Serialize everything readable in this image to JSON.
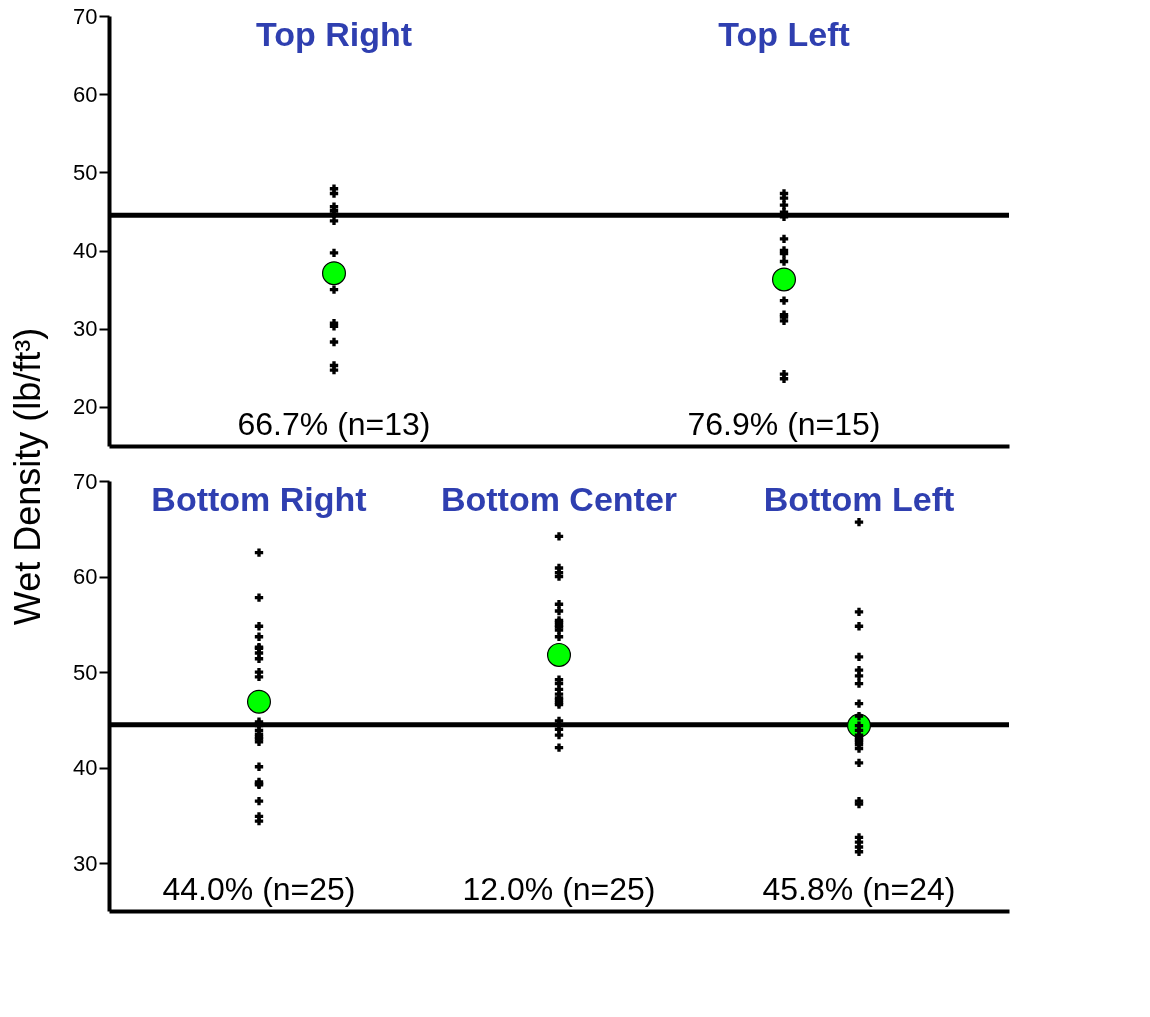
{
  "chart_data": [
    {
      "type": "scatter",
      "ylabel": "Wet Density (lb/ft³)",
      "categories": [
        "Top Right",
        "Top Left"
      ],
      "ylim": [
        15,
        70
      ],
      "yticks": [
        20,
        30,
        40,
        50,
        60,
        70
      ],
      "grid": false,
      "series": [
        {
          "marker": "cross",
          "color": "#000000",
          "x": [
            "Top Right",
            "Top Right",
            "Top Right",
            "Top Right",
            "Top Right",
            "Top Right",
            "Top Right",
            "Top Right",
            "Top Right",
            "Top Right",
            "Top Right",
            "Top Right",
            "Top Right",
            "Top Left",
            "Top Left",
            "Top Left",
            "Top Left",
            "Top Left",
            "Top Left",
            "Top Left",
            "Top Left",
            "Top Left",
            "Top Left",
            "Top Left",
            "Top Left",
            "Top Left",
            "Top Left",
            "Top Left"
          ],
          "values": [
            47.9,
            47.3,
            45.6,
            45.1,
            44.7,
            43.8,
            39.7,
            35.0,
            30.7,
            30.3,
            28.3,
            25.3,
            24.7,
            47.3,
            46.7,
            45.8,
            44.9,
            44.3,
            41.5,
            40.0,
            39.6,
            38.6,
            33.6,
            31.8,
            31.5,
            31.0,
            24.2,
            23.6
          ]
        },
        {
          "marker": "circle",
          "color": "#00ff00",
          "x": [
            "Top Right",
            "Top Left"
          ],
          "values": [
            37.1,
            36.3
          ]
        }
      ],
      "ref_lines": [
        {
          "axis": "y",
          "value": 44.5,
          "color": "#000000"
        }
      ],
      "annotations": [
        "66.7% (n=13)",
        "76.9% (n=15)"
      ]
    },
    {
      "type": "scatter",
      "categories": [
        "Bottom Right",
        "Bottom Center",
        "Bottom Left"
      ],
      "ylim": [
        25,
        70
      ],
      "yticks": [
        30,
        40,
        50,
        60,
        70
      ],
      "grid": false,
      "series": [
        {
          "marker": "cross",
          "color": "#000000",
          "x": [
            "Bottom Right",
            "Bottom Right",
            "Bottom Right",
            "Bottom Right",
            "Bottom Right",
            "Bottom Right",
            "Bottom Right",
            "Bottom Right",
            "Bottom Right",
            "Bottom Right",
            "Bottom Right",
            "Bottom Right",
            "Bottom Right",
            "Bottom Right",
            "Bottom Right",
            "Bottom Right",
            "Bottom Right",
            "Bottom Right",
            "Bottom Right",
            "Bottom Right",
            "Bottom Right",
            "Bottom Right",
            "Bottom Right",
            "Bottom Right",
            "Bottom Right",
            "Bottom Center",
            "Bottom Center",
            "Bottom Center",
            "Bottom Center",
            "Bottom Center",
            "Bottom Center",
            "Bottom Center",
            "Bottom Center",
            "Bottom Center",
            "Bottom Center",
            "Bottom Center",
            "Bottom Center",
            "Bottom Center",
            "Bottom Center",
            "Bottom Center",
            "Bottom Center",
            "Bottom Center",
            "Bottom Center",
            "Bottom Center",
            "Bottom Center",
            "Bottom Center",
            "Bottom Center",
            "Bottom Center",
            "Bottom Center",
            "Bottom Center",
            "Bottom Left",
            "Bottom Left",
            "Bottom Left",
            "Bottom Left",
            "Bottom Left",
            "Bottom Left",
            "Bottom Left",
            "Bottom Left",
            "Bottom Left",
            "Bottom Left",
            "Bottom Left",
            "Bottom Left",
            "Bottom Left",
            "Bottom Left",
            "Bottom Left",
            "Bottom Left",
            "Bottom Left",
            "Bottom Left",
            "Bottom Left",
            "Bottom Left",
            "Bottom Left",
            "Bottom Left",
            "Bottom Left",
            "Bottom Left"
          ],
          "values": [
            62.5,
            57.8,
            54.8,
            53.7,
            52.6,
            52.5,
            52.0,
            51.4,
            50.0,
            49.5,
            44.8,
            44.6,
            44.4,
            43.9,
            43.5,
            43.2,
            43.0,
            42.7,
            40.1,
            38.5,
            38.3,
            38.2,
            36.5,
            34.9,
            34.4,
            64.2,
            60.9,
            60.4,
            60.0,
            57.1,
            56.4,
            55.4,
            55.2,
            54.9,
            54.7,
            54.4,
            53.7,
            49.2,
            48.8,
            48.2,
            47.7,
            47.3,
            47.1,
            46.8,
            46.6,
            44.9,
            44.4,
            44.0,
            43.4,
            42.1,
            65.7,
            56.3,
            54.8,
            51.6,
            50.2,
            49.6,
            48.8,
            46.7,
            45.4,
            44.4,
            43.9,
            43.4,
            43.1,
            42.9,
            42.7,
            42.4,
            42.0,
            40.5,
            36.5,
            36.2,
            32.7,
            32.2,
            31.7,
            31.2
          ]
        },
        {
          "marker": "circle",
          "color": "#00ff00",
          "x": [
            "Bottom Right",
            "Bottom Center",
            "Bottom Left"
          ],
          "values": [
            46.9,
            51.8,
            44.4
          ]
        }
      ],
      "ref_lines": [
        {
          "axis": "y",
          "value": 44.5,
          "color": "#000000"
        }
      ],
      "annotations": [
        "44.0% (n=25)",
        "12.0% (n=25)",
        "45.8% (n=24)"
      ]
    }
  ]
}
